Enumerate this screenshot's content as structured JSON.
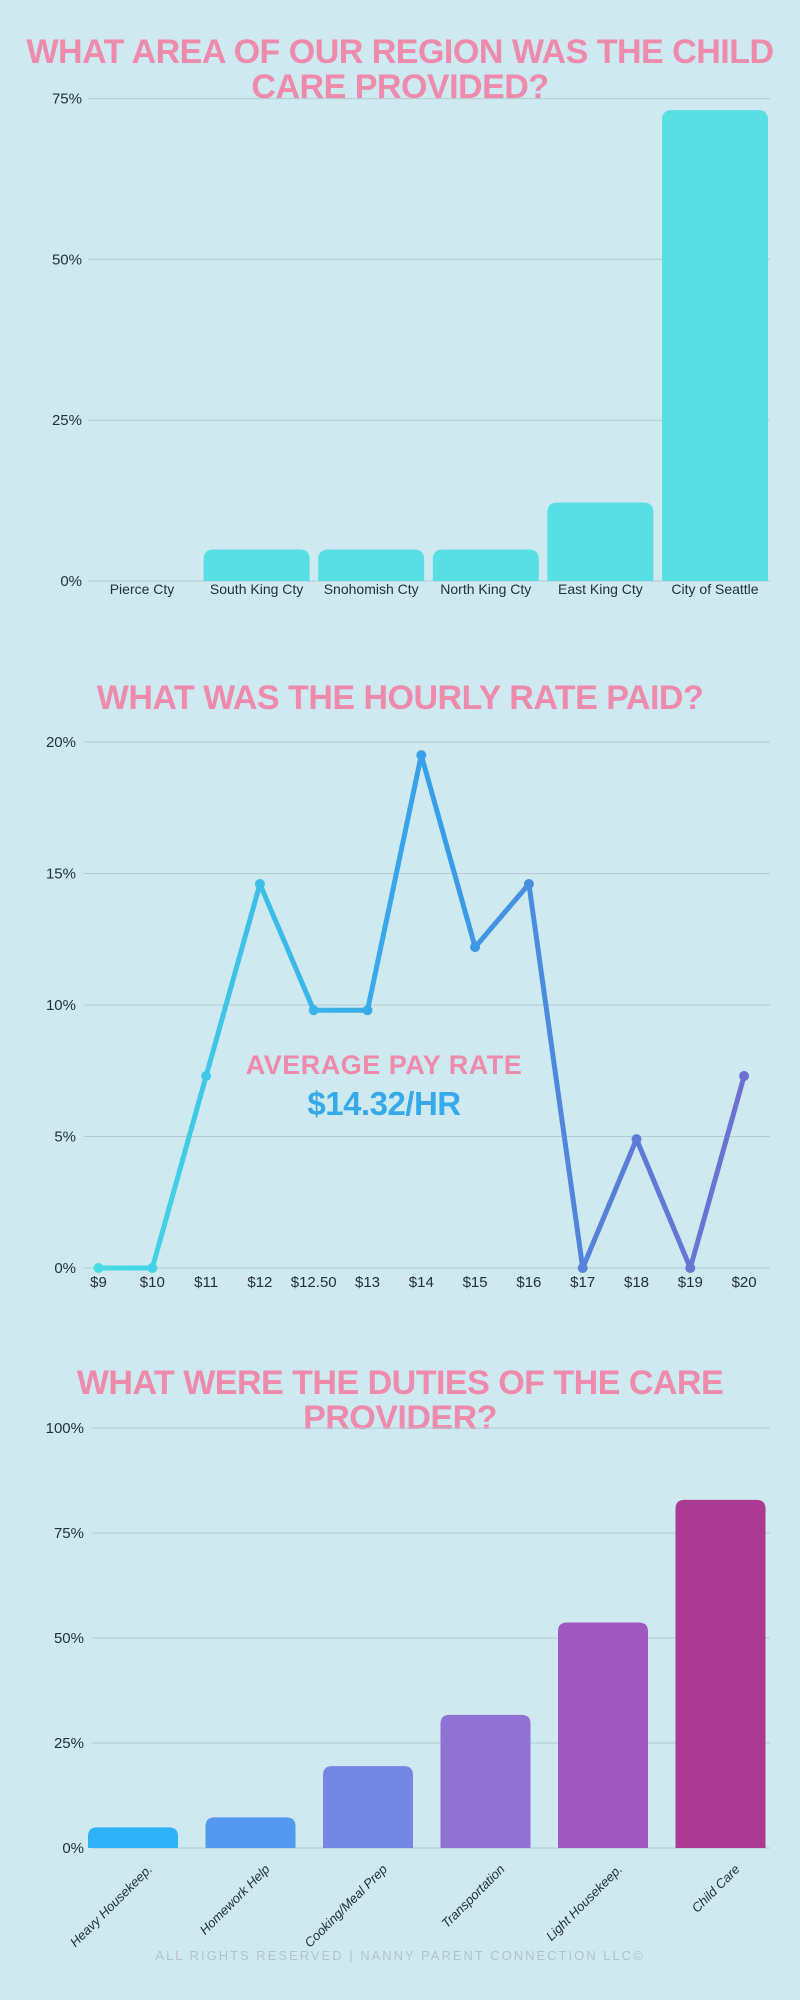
{
  "page": {
    "background": "#cee9f0",
    "title_color": "#ee8aac",
    "grid_color": "#b7c9d1",
    "tick_color": "#22313a",
    "footer": "ALL RIGHTS RESERVED | NANNY PARENT CONNECTION LLC©",
    "footer_color": "#b3c3ca"
  },
  "chart_data": [
    {
      "type": "bar",
      "title": "WHAT AREA OF OUR REGION WAS THE CHILD CARE PROVIDED?",
      "categories": [
        "Pierce Cty",
        "South King Cty",
        "Snohomish Cty",
        "North King Cty",
        "East King Cty",
        "City of Seattle"
      ],
      "values": [
        0,
        4.9,
        4.9,
        4.9,
        12.2,
        73.2
      ],
      "bar_color": "#58dfe4",
      "yticks": [
        0,
        25,
        50,
        75
      ],
      "ylim": [
        0,
        80
      ],
      "xlabel": "",
      "ylabel": "",
      "grid": true,
      "legend": "none"
    },
    {
      "type": "line",
      "title": "WHAT WAS THE HOURLY RATE PAID?",
      "x": [
        "$9",
        "$10",
        "$11",
        "$12",
        "$12.50",
        "$13",
        "$14",
        "$15",
        "$16",
        "$17",
        "$18",
        "$19",
        "$20"
      ],
      "values": [
        0,
        0,
        7.3,
        14.6,
        9.8,
        9.8,
        19.5,
        12.2,
        14.6,
        0,
        4.9,
        0,
        7.3
      ],
      "yticks": [
        0,
        5,
        10,
        15,
        20
      ],
      "ylim": [
        0,
        21
      ],
      "line_gradient": [
        {
          "offset": 0,
          "color": "#46dce3"
        },
        {
          "offset": 0.32,
          "color": "#3ab6e8"
        },
        {
          "offset": 0.52,
          "color": "#369fea"
        },
        {
          "offset": 0.78,
          "color": "#5780d9"
        },
        {
          "offset": 1,
          "color": "#6e70d1"
        }
      ],
      "annotation": {
        "label": "AVERAGE PAY RATE",
        "value": "$14.32/HR",
        "label_color": "#ee8aac",
        "value_color": "#36a9ea"
      },
      "xlabel": "",
      "ylabel": "",
      "grid": true,
      "legend": "none"
    },
    {
      "type": "bar",
      "title": "WHAT WERE THE DUTIES OF THE CARE PROVIDER?",
      "categories": [
        "Heavy Housekeep.",
        "Homework Help",
        "Cooking/Meal Prep",
        "Transportation",
        "Light Housekeep.",
        "Child Care"
      ],
      "values": [
        4.9,
        7.3,
        19.5,
        31.7,
        53.7,
        82.9
      ],
      "bar_colors": [
        "#2fb1f7",
        "#5598ef",
        "#7487e4",
        "#8f72d4",
        "#9f58c0",
        "#ab3a92"
      ],
      "yticks": [
        0,
        25,
        50,
        75,
        100
      ],
      "ylim": [
        0,
        105
      ],
      "xlabel": "",
      "ylabel": "",
      "grid": true,
      "legend": "none"
    }
  ]
}
